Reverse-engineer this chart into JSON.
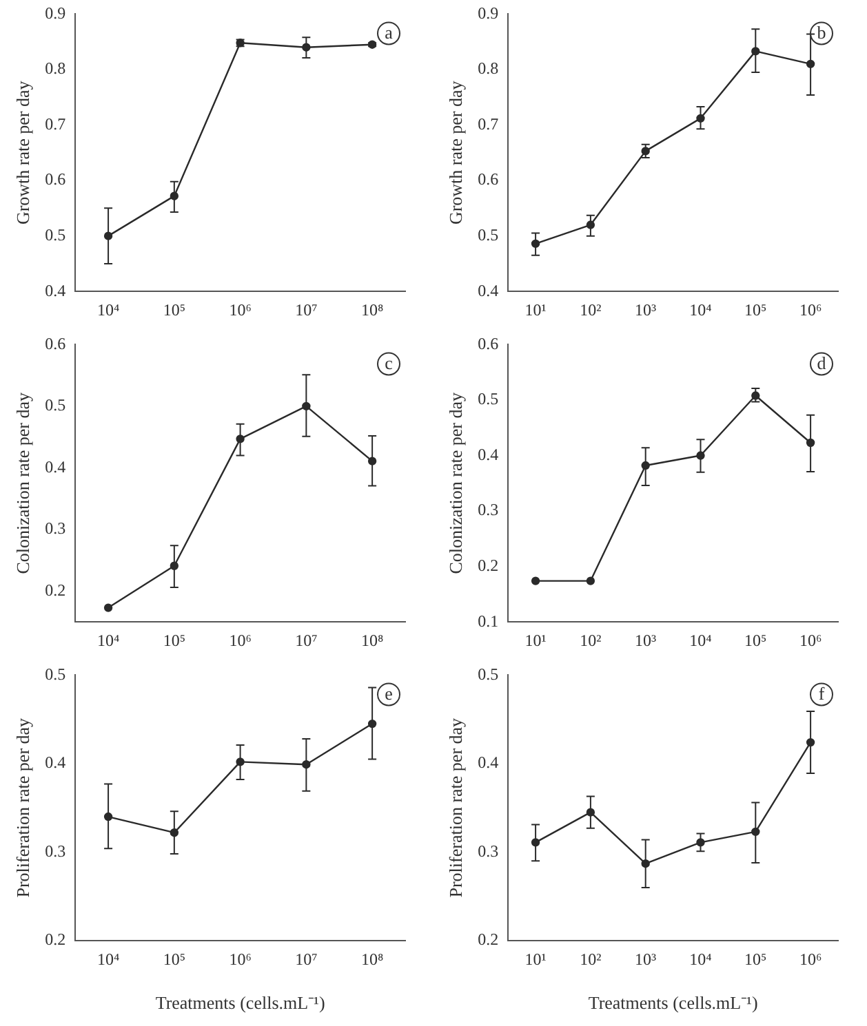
{
  "chart_data": [
    {
      "type": "line",
      "ylabel": "Growth rate per day",
      "categories": [
        "10⁴",
        "10⁵",
        "10⁶",
        "10⁷",
        "10⁸"
      ],
      "ylim": [
        0.4,
        0.9
      ],
      "yticks": [
        0.4,
        0.5,
        0.6,
        0.7,
        0.8,
        0.9
      ],
      "grid": false,
      "legend": false,
      "marker": "circle",
      "line_style": "solid",
      "annotations": [
        "a"
      ],
      "series": [
        {
          "color": "#2a2a2a",
          "values": [
            0.5,
            0.572,
            0.848,
            0.84,
            0.845
          ],
          "errors": [
            [
              0.45,
              0.55
            ],
            [
              0.543,
              0.598
            ],
            [
              0.842,
              0.854
            ],
            [
              0.821,
              0.858
            ],
            [
              0.842,
              0.848
            ]
          ]
        }
      ]
    },
    {
      "type": "line",
      "ylabel": "Growth rate per day",
      "categories": [
        "10¹",
        "10²",
        "10³",
        "10⁴",
        "10⁵",
        "10⁶"
      ],
      "ylim": [
        0.4,
        0.9
      ],
      "yticks": [
        0.4,
        0.5,
        0.6,
        0.7,
        0.8,
        0.9
      ],
      "grid": false,
      "legend": false,
      "marker": "circle",
      "line_style": "solid",
      "annotations": [
        "b"
      ],
      "series": [
        {
          "color": "#2a2a2a",
          "values": [
            0.486,
            0.52,
            0.653,
            0.712,
            0.833,
            0.81
          ],
          "errors": [
            [
              0.465,
              0.505
            ],
            [
              0.5,
              0.537
            ],
            [
              0.641,
              0.665
            ],
            [
              0.693,
              0.733
            ],
            [
              0.795,
              0.873
            ],
            [
              0.754,
              0.864
            ]
          ]
        }
      ]
    },
    {
      "type": "line",
      "ylabel": "Colonization rate per day",
      "categories": [
        "10⁴",
        "10⁵",
        "10⁶",
        "10⁷",
        "10⁸"
      ],
      "ylim": [
        0.15,
        0.6
      ],
      "yticks": [
        0.2,
        0.3,
        0.4,
        0.5,
        0.6
      ],
      "grid": false,
      "legend": false,
      "marker": "circle",
      "line_style": "solid",
      "annotations": [
        "c"
      ],
      "series": [
        {
          "color": "#2a2a2a",
          "values": [
            0.173,
            0.241,
            0.447,
            0.5,
            0.411
          ],
          "errors": [
            null,
            [
              0.206,
              0.274
            ],
            [
              0.42,
              0.471
            ],
            [
              0.451,
              0.551
            ],
            [
              0.371,
              0.452
            ]
          ]
        }
      ]
    },
    {
      "type": "line",
      "ylabel": "Colonization rate per day",
      "categories": [
        "10¹",
        "10²",
        "10³",
        "10⁴",
        "10⁵",
        "10⁶"
      ],
      "ylim": [
        0.1,
        0.6
      ],
      "yticks": [
        0.1,
        0.2,
        0.3,
        0.4,
        0.5,
        0.6
      ],
      "grid": false,
      "legend": false,
      "marker": "circle",
      "line_style": "solid",
      "annotations": [
        "d"
      ],
      "series": [
        {
          "color": "#2a2a2a",
          "values": [
            0.174,
            0.174,
            0.382,
            0.4,
            0.508,
            0.423
          ],
          "errors": [
            null,
            null,
            [
              0.346,
              0.414
            ],
            [
              0.37,
              0.429
            ],
            [
              0.497,
              0.521
            ],
            [
              0.371,
              0.473
            ]
          ]
        }
      ]
    },
    {
      "type": "line",
      "ylabel": "Proliferation rate per day",
      "xlabel": "Treatments (cells.mL⁻¹)",
      "categories": [
        "10⁴",
        "10⁵",
        "10⁶",
        "10⁷",
        "10⁸"
      ],
      "ylim": [
        0.2,
        0.5
      ],
      "yticks": [
        0.2,
        0.3,
        0.4,
        0.5
      ],
      "grid": false,
      "legend": false,
      "marker": "circle",
      "line_style": "solid",
      "annotations": [
        "e"
      ],
      "series": [
        {
          "color": "#2a2a2a",
          "values": [
            0.34,
            0.322,
            0.402,
            0.399,
            0.445
          ],
          "errors": [
            [
              0.304,
              0.377
            ],
            [
              0.298,
              0.346
            ],
            [
              0.382,
              0.421
            ],
            [
              0.369,
              0.428
            ],
            [
              0.405,
              0.486
            ]
          ]
        }
      ]
    },
    {
      "type": "line",
      "ylabel": "Proliferation rate per day",
      "xlabel": "Treatments (cells.mL⁻¹)",
      "categories": [
        "10¹",
        "10²",
        "10³",
        "10⁴",
        "10⁵",
        "10⁶"
      ],
      "ylim": [
        0.2,
        0.5
      ],
      "yticks": [
        0.2,
        0.3,
        0.4,
        0.5
      ],
      "grid": false,
      "legend": false,
      "marker": "circle",
      "line_style": "solid",
      "annotations": [
        "f"
      ],
      "series": [
        {
          "color": "#2a2a2a",
          "values": [
            0.311,
            0.345,
            0.287,
            0.311,
            0.323,
            0.424
          ],
          "errors": [
            [
              0.29,
              0.331
            ],
            [
              0.327,
              0.363
            ],
            [
              0.26,
              0.314
            ],
            [
              0.301,
              0.321
            ],
            [
              0.288,
              0.356
            ],
            [
              0.389,
              0.459
            ]
          ]
        }
      ]
    }
  ]
}
